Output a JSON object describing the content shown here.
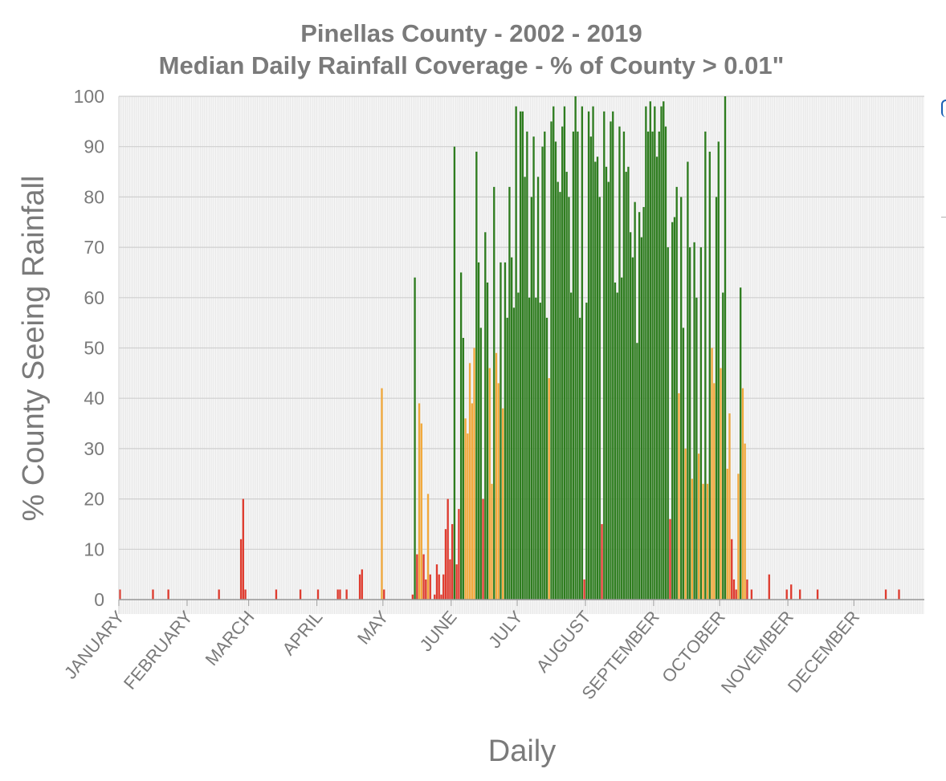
{
  "chart_data": {
    "type": "bar",
    "title": "Pinellas County - 2002 - 2019",
    "subtitle": "Median Daily Rainfall Coverage - % of County > 0.01\"",
    "xlabel": "Daily",
    "ylabel": "% County Seeing Rainfall",
    "ylim": [
      0,
      100
    ],
    "yticks": [
      0,
      10,
      20,
      30,
      40,
      50,
      60,
      70,
      80,
      90,
      100
    ],
    "x_range_days": [
      1,
      366
    ],
    "months": [
      {
        "label": "JANUARY",
        "start_day": 1
      },
      {
        "label": "FEBRUARY",
        "start_day": 32
      },
      {
        "label": "MARCH",
        "start_day": 60
      },
      {
        "label": "APRIL",
        "start_day": 91
      },
      {
        "label": "MAY",
        "start_day": 121
      },
      {
        "label": "JUNE",
        "start_day": 152
      },
      {
        "label": "JULY",
        "start_day": 182
      },
      {
        "label": "AUGUST",
        "start_day": 213
      },
      {
        "label": "SEPTEMBER",
        "start_day": 244
      },
      {
        "label": "OCTOBER",
        "start_day": 274
      },
      {
        "label": "NOVEMBER",
        "start_day": 305
      },
      {
        "label": "DECEMBER",
        "start_day": 335
      }
    ],
    "colors": {
      "low": "#e03c2f",
      "medium": "#f2a93b",
      "high": "#2e7d1f",
      "grid": "#cfcfcf",
      "plot_bg": "#f4f4f4"
    },
    "color_thresholds": {
      "low_max": 20,
      "medium_max": 50
    },
    "grid": true,
    "legend": "none",
    "bars": [
      {
        "day": 1,
        "value": 2
      },
      {
        "day": 16,
        "value": 2
      },
      {
        "day": 23,
        "value": 2
      },
      {
        "day": 46,
        "value": 2
      },
      {
        "day": 56,
        "value": 12
      },
      {
        "day": 57,
        "value": 20
      },
      {
        "day": 58,
        "value": 2
      },
      {
        "day": 72,
        "value": 2
      },
      {
        "day": 83,
        "value": 2
      },
      {
        "day": 91,
        "value": 2
      },
      {
        "day": 100,
        "value": 2
      },
      {
        "day": 101,
        "value": 2
      },
      {
        "day": 104,
        "value": 2
      },
      {
        "day": 110,
        "value": 5
      },
      {
        "day": 111,
        "value": 6
      },
      {
        "day": 120,
        "value": 42
      },
      {
        "day": 121,
        "value": 2
      },
      {
        "day": 134,
        "value": 1
      },
      {
        "day": 135,
        "value": 64
      },
      {
        "day": 136,
        "value": 9
      },
      {
        "day": 137,
        "value": 39
      },
      {
        "day": 138,
        "value": 35
      },
      {
        "day": 139,
        "value": 9
      },
      {
        "day": 140,
        "value": 4
      },
      {
        "day": 141,
        "value": 21
      },
      {
        "day": 142,
        "value": 5
      },
      {
        "day": 144,
        "value": 1
      },
      {
        "day": 145,
        "value": 7
      },
      {
        "day": 146,
        "value": 5
      },
      {
        "day": 147,
        "value": 1
      },
      {
        "day": 148,
        "value": 5
      },
      {
        "day": 149,
        "value": 14
      },
      {
        "day": 150,
        "value": 20
      },
      {
        "day": 151,
        "value": 8
      },
      {
        "day": 152,
        "value": 15
      },
      {
        "day": 153,
        "value": 90
      },
      {
        "day": 154,
        "value": 7
      },
      {
        "day": 155,
        "value": 18
      },
      {
        "day": 156,
        "value": 65
      },
      {
        "day": 157,
        "value": 52
      },
      {
        "day": 158,
        "value": 36
      },
      {
        "day": 159,
        "value": 33
      },
      {
        "day": 160,
        "value": 47
      },
      {
        "day": 161,
        "value": 39
      },
      {
        "day": 162,
        "value": 50
      },
      {
        "day": 163,
        "value": 89
      },
      {
        "day": 164,
        "value": 67
      },
      {
        "day": 165,
        "value": 54
      },
      {
        "day": 166,
        "value": 20
      },
      {
        "day": 167,
        "value": 73
      },
      {
        "day": 168,
        "value": 63
      },
      {
        "day": 169,
        "value": 46
      },
      {
        "day": 170,
        "value": 23
      },
      {
        "day": 171,
        "value": 82
      },
      {
        "day": 172,
        "value": 49
      },
      {
        "day": 173,
        "value": 43
      },
      {
        "day": 174,
        "value": 67
      },
      {
        "day": 175,
        "value": 38
      },
      {
        "day": 176,
        "value": 67
      },
      {
        "day": 177,
        "value": 56
      },
      {
        "day": 178,
        "value": 82
      },
      {
        "day": 179,
        "value": 68
      },
      {
        "day": 180,
        "value": 58
      },
      {
        "day": 181,
        "value": 98
      },
      {
        "day": 182,
        "value": 61
      },
      {
        "day": 183,
        "value": 97
      },
      {
        "day": 184,
        "value": 97
      },
      {
        "day": 185,
        "value": 84
      },
      {
        "day": 186,
        "value": 93
      },
      {
        "day": 187,
        "value": 60
      },
      {
        "day": 188,
        "value": 80
      },
      {
        "day": 189,
        "value": 92
      },
      {
        "day": 190,
        "value": 60
      },
      {
        "day": 191,
        "value": 84
      },
      {
        "day": 192,
        "value": 59
      },
      {
        "day": 193,
        "value": 90
      },
      {
        "day": 194,
        "value": 93
      },
      {
        "day": 195,
        "value": 56
      },
      {
        "day": 196,
        "value": 44
      },
      {
        "day": 197,
        "value": 95
      },
      {
        "day": 198,
        "value": 98
      },
      {
        "day": 199,
        "value": 91
      },
      {
        "day": 200,
        "value": 83
      },
      {
        "day": 201,
        "value": 81
      },
      {
        "day": 202,
        "value": 94
      },
      {
        "day": 203,
        "value": 98
      },
      {
        "day": 204,
        "value": 85
      },
      {
        "day": 205,
        "value": 80
      },
      {
        "day": 206,
        "value": 61
      },
      {
        "day": 207,
        "value": 93
      },
      {
        "day": 208,
        "value": 100
      },
      {
        "day": 209,
        "value": 93
      },
      {
        "day": 210,
        "value": 56
      },
      {
        "day": 211,
        "value": 98
      },
      {
        "day": 212,
        "value": 4
      },
      {
        "day": 213,
        "value": 59
      },
      {
        "day": 214,
        "value": 97
      },
      {
        "day": 215,
        "value": 92
      },
      {
        "day": 216,
        "value": 98
      },
      {
        "day": 217,
        "value": 87
      },
      {
        "day": 218,
        "value": 88
      },
      {
        "day": 219,
        "value": 80
      },
      {
        "day": 220,
        "value": 15
      },
      {
        "day": 221,
        "value": 97
      },
      {
        "day": 222,
        "value": 86
      },
      {
        "day": 223,
        "value": 83
      },
      {
        "day": 224,
        "value": 95
      },
      {
        "day": 225,
        "value": 97
      },
      {
        "day": 226,
        "value": 63
      },
      {
        "day": 227,
        "value": 61
      },
      {
        "day": 228,
        "value": 94
      },
      {
        "day": 229,
        "value": 64
      },
      {
        "day": 230,
        "value": 93
      },
      {
        "day": 231,
        "value": 85
      },
      {
        "day": 232,
        "value": 86
      },
      {
        "day": 233,
        "value": 73
      },
      {
        "day": 234,
        "value": 68
      },
      {
        "day": 235,
        "value": 79
      },
      {
        "day": 236,
        "value": 51
      },
      {
        "day": 237,
        "value": 77
      },
      {
        "day": 238,
        "value": 72
      },
      {
        "day": 239,
        "value": 78
      },
      {
        "day": 240,
        "value": 98
      },
      {
        "day": 241,
        "value": 93
      },
      {
        "day": 242,
        "value": 99
      },
      {
        "day": 243,
        "value": 93
      },
      {
        "day": 244,
        "value": 98
      },
      {
        "day": 245,
        "value": 88
      },
      {
        "day": 246,
        "value": 93
      },
      {
        "day": 247,
        "value": 98
      },
      {
        "day": 248,
        "value": 99
      },
      {
        "day": 249,
        "value": 94
      },
      {
        "day": 250,
        "value": 70
      },
      {
        "day": 251,
        "value": 16
      },
      {
        "day": 252,
        "value": 75
      },
      {
        "day": 253,
        "value": 76
      },
      {
        "day": 254,
        "value": 82
      },
      {
        "day": 255,
        "value": 41
      },
      {
        "day": 256,
        "value": 80
      },
      {
        "day": 257,
        "value": 54
      },
      {
        "day": 258,
        "value": 30
      },
      {
        "day": 259,
        "value": 87
      },
      {
        "day": 260,
        "value": 70
      },
      {
        "day": 261,
        "value": 24
      },
      {
        "day": 262,
        "value": 71
      },
      {
        "day": 263,
        "value": 60
      },
      {
        "day": 264,
        "value": 29
      },
      {
        "day": 265,
        "value": 70
      },
      {
        "day": 266,
        "value": 23
      },
      {
        "day": 267,
        "value": 93
      },
      {
        "day": 268,
        "value": 23
      },
      {
        "day": 269,
        "value": 89
      },
      {
        "day": 270,
        "value": 50
      },
      {
        "day": 271,
        "value": 43
      },
      {
        "day": 272,
        "value": 80
      },
      {
        "day": 273,
        "value": 91
      },
      {
        "day": 274,
        "value": 46
      },
      {
        "day": 275,
        "value": 61
      },
      {
        "day": 276,
        "value": 100
      },
      {
        "day": 277,
        "value": 26
      },
      {
        "day": 278,
        "value": 37
      },
      {
        "day": 279,
        "value": 12
      },
      {
        "day": 280,
        "value": 4
      },
      {
        "day": 281,
        "value": 2
      },
      {
        "day": 282,
        "value": 25
      },
      {
        "day": 283,
        "value": 62
      },
      {
        "day": 284,
        "value": 42
      },
      {
        "day": 285,
        "value": 31
      },
      {
        "day": 286,
        "value": 4
      },
      {
        "day": 288,
        "value": 2
      },
      {
        "day": 296,
        "value": 5
      },
      {
        "day": 304,
        "value": 2
      },
      {
        "day": 306,
        "value": 3
      },
      {
        "day": 310,
        "value": 2
      },
      {
        "day": 318,
        "value": 2
      },
      {
        "day": 349,
        "value": 2
      },
      {
        "day": 355,
        "value": 2
      }
    ]
  }
}
